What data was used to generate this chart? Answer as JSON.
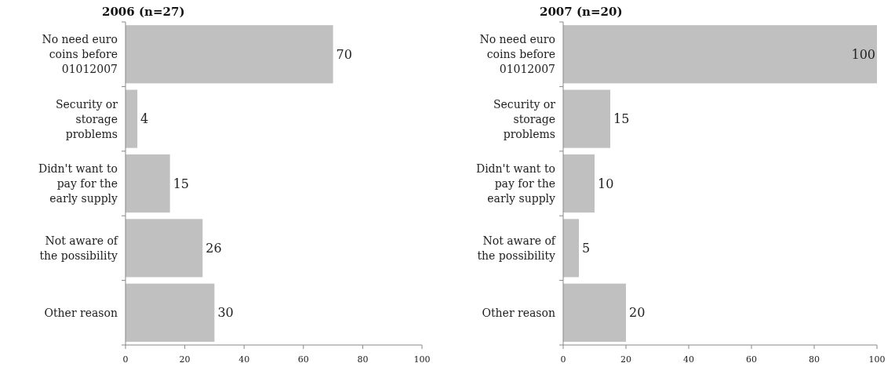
{
  "chart_data": [
    {
      "type": "bar",
      "orientation": "horizontal",
      "title": "2006 (n=27)",
      "categories": [
        "No need euro coins before 01012007",
        "Security or storage problems",
        "Didn't want to pay for the early supply",
        "Not aware of the possibility",
        "Other reason"
      ],
      "values": [
        70,
        4,
        15,
        26,
        30
      ],
      "color": "#c0c0c0",
      "xlim": [
        0,
        100
      ],
      "xticks": [
        0,
        20,
        40,
        60,
        80,
        100
      ],
      "data_labels": true,
      "grid": false
    },
    {
      "type": "bar",
      "orientation": "horizontal",
      "title": "2007 (n=20)",
      "categories": [
        "No need euro coins before 01012007",
        "Security or storage problems",
        "Didn't want to pay for the early supply",
        "Not aware of the possibility",
        "Other reason"
      ],
      "values": [
        100,
        15,
        10,
        5,
        20
      ],
      "color": "#c0c0c0",
      "xlim": [
        0,
        100
      ],
      "xticks": [
        0,
        20,
        40,
        60,
        80,
        100
      ],
      "data_labels": true,
      "grid": false
    }
  ]
}
